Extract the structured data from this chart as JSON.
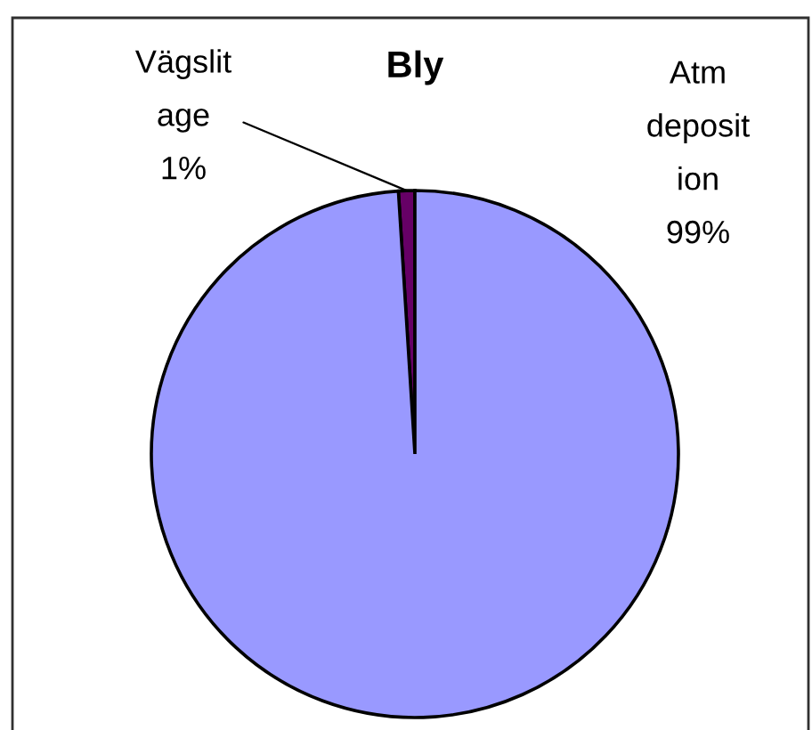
{
  "chart_data": {
    "type": "pie",
    "title": "Bly",
    "categories": [
      "Vägslit\nage",
      "Atm\ndeposit\nion"
    ],
    "values": [
      1,
      99
    ],
    "colors": [
      "#660066",
      "#9999ff"
    ],
    "value_labels": [
      "1%",
      "99%"
    ]
  }
}
